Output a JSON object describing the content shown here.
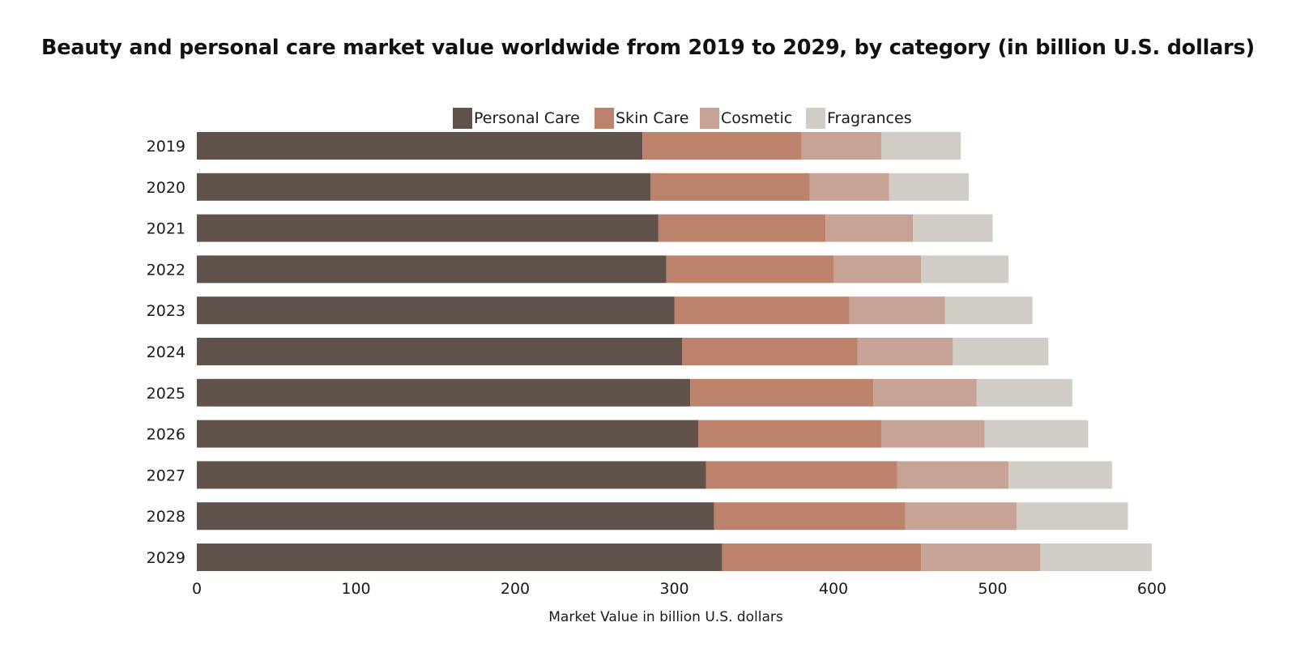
{
  "chart_data": {
    "type": "bar",
    "orientation": "horizontal",
    "stacked": true,
    "title": "Beauty and personal care market value worldwide from 2019 to 2029, by category (in billion U.S. dollars)",
    "xlabel": "Market Value in billion U.S. dollars",
    "ylabel": "",
    "xlim": [
      0,
      600
    ],
    "xticks": [
      0,
      100,
      200,
      300,
      400,
      500,
      600
    ],
    "grid": false,
    "legend_position": "top-center",
    "categories": [
      "2019",
      "2020",
      "2021",
      "2022",
      "2023",
      "2024",
      "2025",
      "2026",
      "2027",
      "2028",
      "2029"
    ],
    "series": [
      {
        "name": "Personal Care",
        "color": "#61524b",
        "values": [
          280,
          285,
          290,
          295,
          300,
          305,
          310,
          315,
          320,
          325,
          330
        ]
      },
      {
        "name": "Skin Care",
        "color": "#bd826b",
        "values": [
          100,
          100,
          105,
          105,
          110,
          110,
          115,
          115,
          120,
          120,
          125
        ]
      },
      {
        "name": "Cosmetic",
        "color": "#c7a396",
        "values": [
          50,
          50,
          55,
          55,
          60,
          60,
          65,
          65,
          70,
          70,
          75
        ]
      },
      {
        "name": "Fragrances",
        "color": "#d1ccc5",
        "values": [
          50,
          50,
          50,
          55,
          55,
          60,
          60,
          65,
          65,
          70,
          70
        ]
      }
    ]
  }
}
